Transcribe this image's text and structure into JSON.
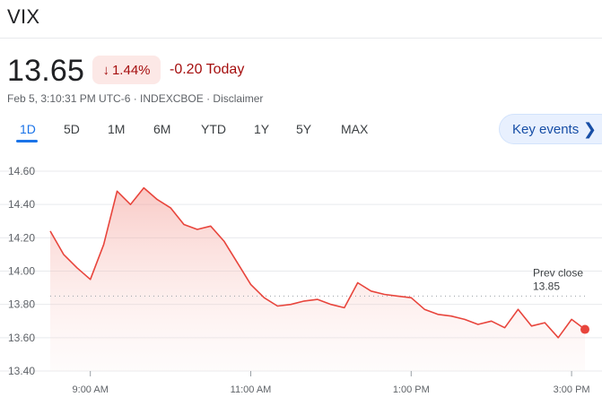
{
  "header": {
    "ticker": "VIX"
  },
  "quote": {
    "price": "13.65",
    "change_percent": "1.44%",
    "change_today": "-0.20 Today",
    "meta": "Feb 5, 3:10:31 PM UTC-6 · INDEXCBOE · Disclaimer"
  },
  "ranges": [
    {
      "label": "1D",
      "active": true
    },
    {
      "label": "5D",
      "active": false
    },
    {
      "label": "1M",
      "active": false
    },
    {
      "label": "6M",
      "active": false
    },
    {
      "label": "YTD",
      "active": false
    },
    {
      "label": "1Y",
      "active": false
    },
    {
      "label": "5Y",
      "active": false
    },
    {
      "label": "MAX",
      "active": false
    }
  ],
  "key_events": {
    "label": "Key events",
    "icon": "chevron-right-icon"
  },
  "colors": {
    "line": "#e8453c",
    "down": "#a50e0e",
    "accent": "#1a73e8"
  },
  "chart_data": {
    "type": "area",
    "x_unit": "time",
    "x": [
      "8:30 AM",
      "8:40 AM",
      "8:50 AM",
      "9:00 AM",
      "9:10 AM",
      "9:20 AM",
      "9:30 AM",
      "9:40 AM",
      "9:50 AM",
      "10:00 AM",
      "10:10 AM",
      "10:20 AM",
      "10:30 AM",
      "10:40 AM",
      "10:50 AM",
      "11:00 AM",
      "11:10 AM",
      "11:20 AM",
      "11:30 AM",
      "11:40 AM",
      "11:50 AM",
      "12:00 PM",
      "12:10 PM",
      "12:20 PM",
      "12:30 PM",
      "12:40 PM",
      "12:50 PM",
      "1:00 PM",
      "1:10 PM",
      "1:20 PM",
      "1:30 PM",
      "1:40 PM",
      "1:50 PM",
      "2:00 PM",
      "2:10 PM",
      "2:20 PM",
      "2:30 PM",
      "2:40 PM",
      "2:50 PM",
      "3:00 PM",
      "3:10 PM"
    ],
    "series": [
      {
        "values": [
          14.24,
          14.1,
          14.02,
          13.95,
          14.16,
          14.48,
          14.4,
          14.5,
          14.43,
          14.38,
          14.28,
          14.25,
          14.27,
          14.18,
          14.05,
          13.92,
          13.84,
          13.79,
          13.8,
          13.82,
          13.83,
          13.8,
          13.78,
          13.93,
          13.88,
          13.86,
          13.85,
          13.84,
          13.77,
          13.74,
          13.73,
          13.71,
          13.68,
          13.7,
          13.66,
          13.77,
          13.67,
          13.69,
          13.6,
          13.71,
          13.65
        ]
      }
    ],
    "ylim": [
      13.4,
      14.6
    ],
    "y_ticks": [
      "14.60",
      "14.40",
      "14.20",
      "14.00",
      "13.80",
      "13.60",
      "13.40"
    ],
    "x_ticks": [
      "9:00 AM",
      "11:00 AM",
      "1:00 PM",
      "3:00 PM"
    ],
    "prev_close": 13.85,
    "prev_close_label": "Prev close",
    "prev_close_value": "13.85"
  }
}
